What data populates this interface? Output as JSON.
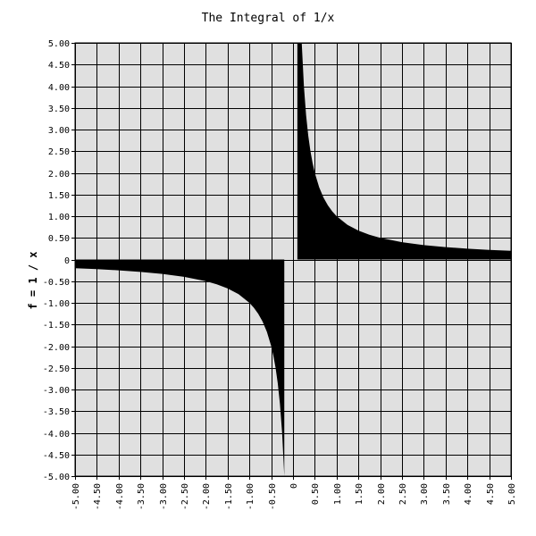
{
  "chart_data": {
    "type": "area",
    "title": "The Integral of 1/x",
    "xlabel": "",
    "ylabel": "f = 1 / x",
    "xlim": [
      -5,
      5
    ],
    "ylim": [
      -5,
      5
    ],
    "grid": true,
    "plot_background": "#e0e0e0",
    "grid_color": "#000000",
    "fill_color": "#000000",
    "x_ticks": [
      -5,
      -4.5,
      -4,
      -3.5,
      -3,
      -2.5,
      -2,
      -1.5,
      -1,
      -0.5,
      0,
      0.5,
      1,
      1.5,
      2,
      2.5,
      3,
      3.5,
      4,
      4.5,
      5
    ],
    "x_tick_labels": [
      "-5.00",
      "-4.50",
      "-4.00",
      "-3.50",
      "-3.00",
      "-2.50",
      "-2.00",
      "-1.50",
      "-1.00",
      "-0.50",
      "0",
      "0.50",
      "1.00",
      "1.50",
      "2.00",
      "2.50",
      "3.00",
      "3.50",
      "4.00",
      "4.50",
      "5.00"
    ],
    "y_ticks": [
      5,
      4.5,
      4,
      3.5,
      3,
      2.5,
      2,
      1.5,
      1,
      0.5,
      0,
      -0.5,
      -1,
      -1.5,
      -2,
      -2.5,
      -3,
      -3.5,
      -4,
      -4.5,
      -5
    ],
    "y_tick_labels": [
      "5.00",
      "4.50",
      "4.00",
      "3.50",
      "3.00",
      "2.50",
      "2.00",
      "1.50",
      "1.00",
      "0.50",
      "0",
      "-0.50",
      "-1.00",
      "-1.50",
      "-2.00",
      "-2.50",
      "-3.00",
      "-3.50",
      "-4.00",
      "-4.50",
      "-5.00"
    ],
    "series": [
      {
        "x": [
          -5.0,
          -4.5,
          -4.0,
          -3.5,
          -3.0,
          -2.5,
          -2.0,
          -1.75,
          -1.5,
          -1.25,
          -1.0,
          -0.9,
          -0.8,
          -0.7,
          -0.6,
          -0.5,
          -0.45,
          -0.4,
          -0.35,
          -0.3,
          -0.25,
          -0.2
        ],
        "y": [
          -0.2,
          -0.222,
          -0.25,
          -0.286,
          -0.333,
          -0.4,
          -0.5,
          -0.571,
          -0.667,
          -0.8,
          -1.0,
          -1.111,
          -1.25,
          -1.429,
          -1.667,
          -2.0,
          -2.222,
          -2.5,
          -2.857,
          -3.333,
          -4.0,
          -5.0
        ]
      },
      {
        "x": [
          0.1,
          0.15,
          0.2,
          0.25,
          0.3,
          0.35,
          0.4,
          0.45,
          0.5,
          0.6,
          0.7,
          0.8,
          0.9,
          1.0,
          1.25,
          1.5,
          1.75,
          2.0,
          2.5,
          3.0,
          3.5,
          4.0,
          4.5,
          5.0
        ],
        "y": [
          5.0,
          5.0,
          5.0,
          4.0,
          3.333,
          2.857,
          2.5,
          2.222,
          2.0,
          1.667,
          1.429,
          1.25,
          1.111,
          1.0,
          0.8,
          0.667,
          0.571,
          0.5,
          0.4,
          0.333,
          0.286,
          0.25,
          0.222,
          0.2
        ]
      }
    ]
  }
}
